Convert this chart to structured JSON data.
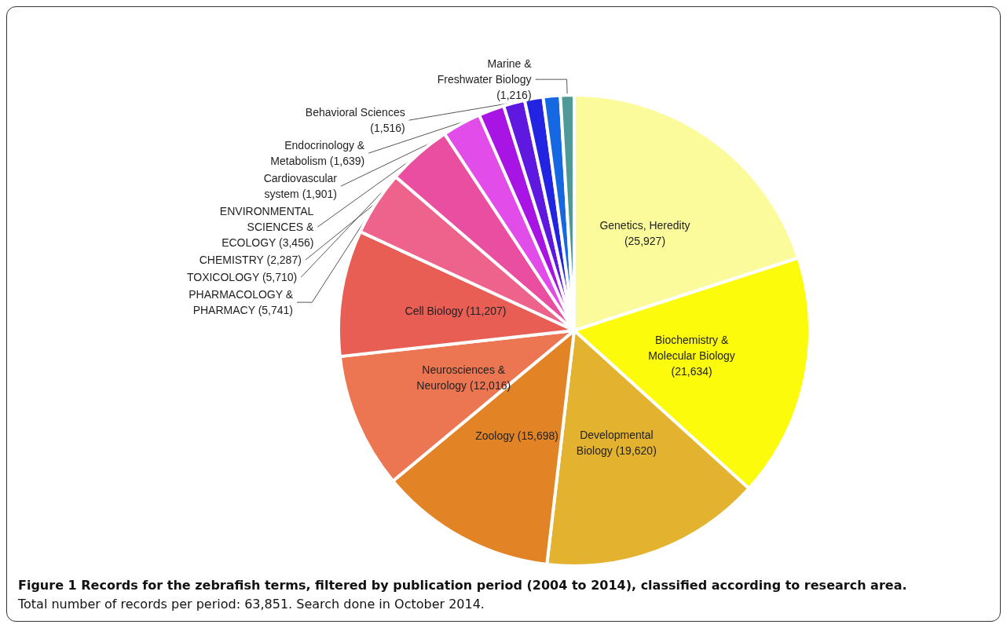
{
  "chart_data": {
    "type": "pie",
    "title": "Figure 1 Records for the zebrafish terms, filtered by publication period (2004 to 2014), classified according to research area.",
    "subtitle": "Total number of records per period: 63,851. Search done in October 2014.",
    "categories": [
      "Genetics, Heredity\n(25,927)",
      "Biochemistry &\nMolecular Biology\n(21,634)",
      "Developmental\nBiology (19,620)",
      "Zoology (15,698)",
      "Neurosciences &\nNeurology (12,016)",
      "Cell Biology (11,207)",
      "PHARMACOLOGY &\nPHARMACY (5,741)",
      "TOXICOLOGY (5,710)",
      "ENVIRONMENTAL\nSCIENCES &\nECOLOGY (3,456)",
      "CHEMISTRY (2,287)",
      "Cardiovascular\nsystem (1,901)",
      "Endocrinology &\nMetabolism (1,639)",
      "Behavioral Sciences\n(1,516)",
      "Marine &\nFreshwater Biology\n(1,216)"
    ],
    "values": [
      25927,
      21634,
      19620,
      15698,
      12016,
      11207,
      5741,
      5710,
      3456,
      2287,
      1901,
      1639,
      1516,
      1216
    ],
    "colors": [
      "#fbfb9b",
      "#fbfb0b",
      "#e3b22e",
      "#e28426",
      "#ec7652",
      "#e85e55",
      "#ee638c",
      "#e94ea0",
      "#e24ce8",
      "#a714e4",
      "#5e18e0",
      "#2324e2",
      "#1668e2",
      "#4f9a96"
    ],
    "legend": false
  }
}
